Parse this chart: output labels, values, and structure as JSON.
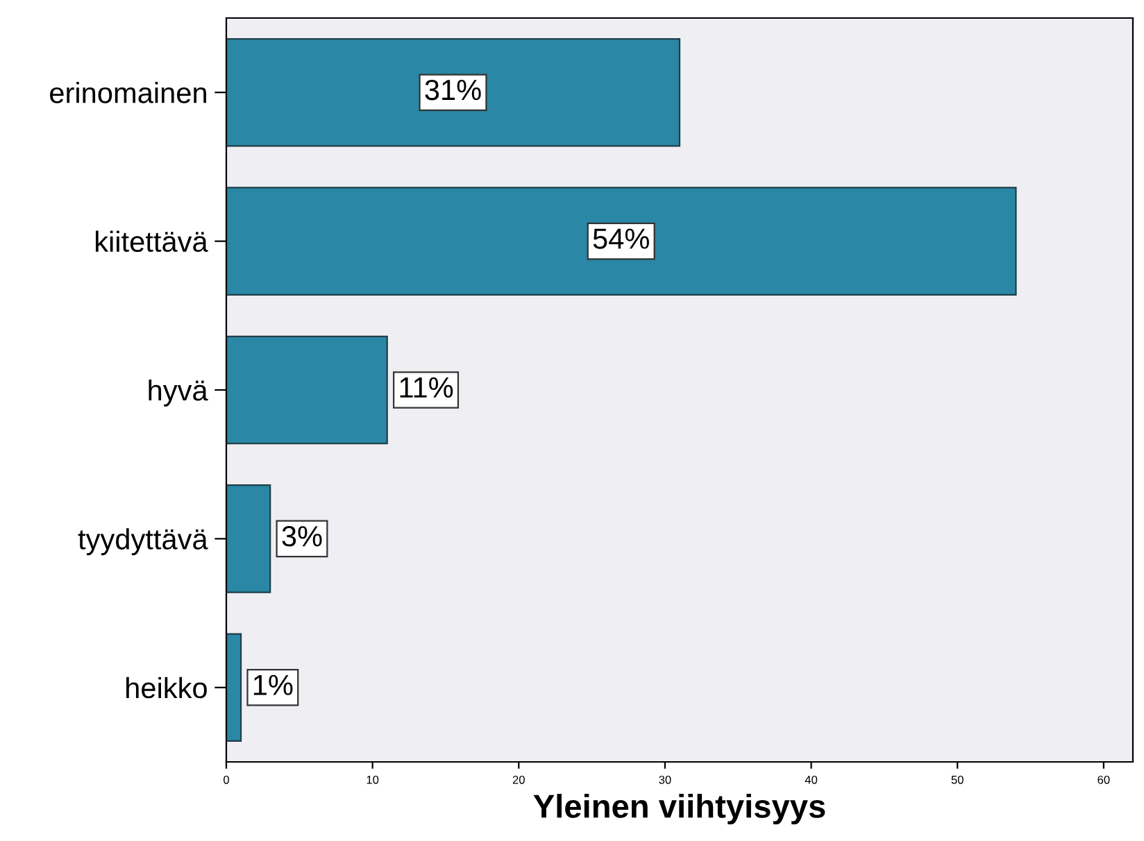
{
  "chart_data": {
    "type": "bar",
    "orientation": "horizontal",
    "xlabel": "Yleinen viihtyisyys",
    "categories": [
      "erinomainen",
      "kiitettävä",
      "hyvä",
      "tyydyttävä",
      "heikko"
    ],
    "values": [
      31,
      54,
      11,
      3,
      1
    ],
    "value_labels": [
      "31%",
      "54%",
      "11%",
      "3%",
      "1%"
    ],
    "color": "#2a87a5",
    "xlim": [
      0,
      62
    ],
    "xticks": [
      0,
      10,
      20,
      30,
      40,
      50,
      60
    ],
    "grid": false
  }
}
